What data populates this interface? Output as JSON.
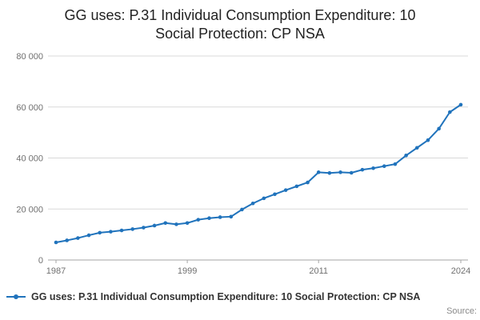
{
  "title_lines": [
    "GG uses: P.31 Individual Consumption Expenditure: 10",
    "Social Protection: CP NSA"
  ],
  "legend": {
    "label": "GG uses: P.31 Individual Consumption Expenditure: 10 Social Protection: CP NSA"
  },
  "source": "Source:",
  "colors": {
    "line": "#2073bc",
    "grid": "#d9d9d9",
    "axis": "#a6a6a6",
    "tick_text": "#707070"
  },
  "chart_data": {
    "type": "line",
    "title": "GG uses: P.31 Individual Consumption Expenditure: 10 Social Protection: CP NSA",
    "xlabel": "",
    "ylabel": "",
    "marker": "circle",
    "grid": "horizontal",
    "legend_position": "bottom-left",
    "ylim": [
      0,
      80000
    ],
    "yticks": [
      0,
      20000,
      40000,
      60000,
      80000
    ],
    "ytick_labels": [
      "0",
      "20 000",
      "40 000",
      "60 000",
      "80 000"
    ],
    "xticks": [
      1987,
      1999,
      2011,
      2024
    ],
    "x": [
      1987,
      1988,
      1989,
      1990,
      1991,
      1992,
      1993,
      1994,
      1995,
      1996,
      1997,
      1998,
      1999,
      2000,
      2001,
      2002,
      2003,
      2004,
      2005,
      2006,
      2007,
      2008,
      2009,
      2010,
      2011,
      2012,
      2013,
      2014,
      2015,
      2016,
      2017,
      2018,
      2019,
      2020,
      2021,
      2022,
      2023,
      2024
    ],
    "series": [
      {
        "name": "GG uses: P.31 Individual Consumption Expenditure: 10 Social Protection: CP NSA",
        "values": [
          6900,
          7700,
          8600,
          9700,
          10700,
          11100,
          11600,
          12100,
          12700,
          13500,
          14500,
          14000,
          14500,
          15800,
          16400,
          16800,
          17000,
          19800,
          22200,
          24200,
          25800,
          27400,
          28900,
          30400,
          34400,
          34100,
          34400,
          34200,
          35400,
          36000,
          36800,
          37600,
          41000,
          44000,
          47000,
          51500,
          58000,
          60900
        ]
      }
    ]
  }
}
